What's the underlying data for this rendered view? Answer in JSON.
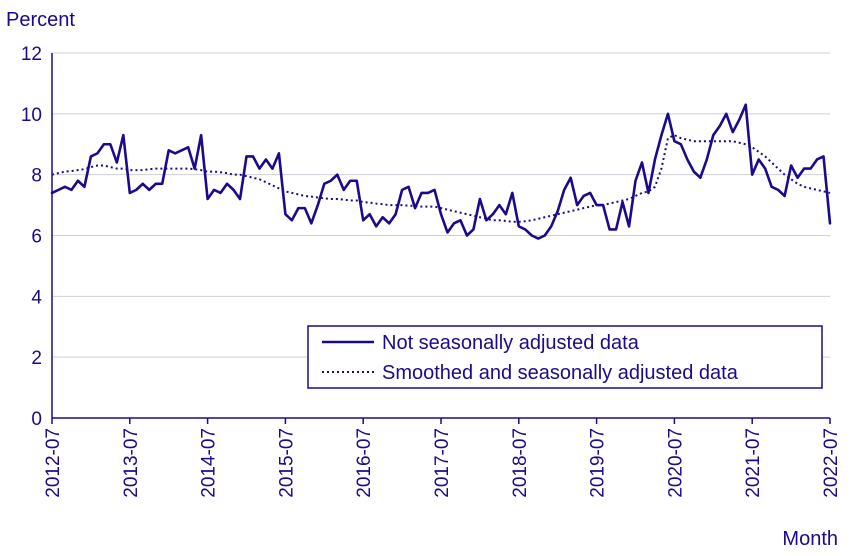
{
  "chart_data": {
    "type": "line",
    "title": "",
    "ylabel": "Percent",
    "xlabel": "Month",
    "ylim": [
      0,
      12
    ],
    "yticks": [
      0,
      2,
      4,
      6,
      8,
      10,
      12
    ],
    "xticks": [
      "2012-07",
      "2013-07",
      "2014-07",
      "2015-07",
      "2016-07",
      "2017-07",
      "2018-07",
      "2019-07",
      "2020-07",
      "2021-07",
      "2022-07"
    ],
    "x_start": "2012-07",
    "x_end": "2022-07",
    "grid": "horizontal",
    "legend_position": "bottom-right",
    "colors": {
      "series": "#1a0a8c",
      "text": "#1a0a8c",
      "grid": "#cfcfd8",
      "axis": "#1a0a8c"
    },
    "series": [
      {
        "name": "Not seasonally adjusted data",
        "style": "solid",
        "values": [
          7.4,
          7.5,
          7.6,
          7.5,
          7.8,
          7.6,
          8.6,
          8.7,
          9.0,
          9.0,
          8.4,
          9.3,
          7.4,
          7.5,
          7.7,
          7.5,
          7.7,
          7.7,
          8.8,
          8.7,
          8.8,
          8.9,
          8.2,
          9.3,
          7.2,
          7.5,
          7.4,
          7.7,
          7.5,
          7.2,
          8.6,
          8.6,
          8.2,
          8.5,
          8.2,
          8.7,
          6.7,
          6.5,
          6.9,
          6.9,
          6.4,
          7.0,
          7.7,
          7.8,
          8.0,
          7.5,
          7.8,
          7.8,
          6.5,
          6.7,
          6.3,
          6.6,
          6.4,
          6.7,
          7.5,
          7.6,
          6.9,
          7.4,
          7.4,
          7.5,
          6.7,
          6.1,
          6.4,
          6.5,
          6.0,
          6.2,
          7.2,
          6.5,
          6.7,
          7.0,
          6.7,
          7.4,
          6.3,
          6.2,
          6.0,
          5.9,
          6.0,
          6.3,
          6.8,
          7.5,
          7.9,
          7.0,
          7.3,
          7.4,
          7.0,
          7.0,
          6.2,
          6.2,
          7.1,
          6.3,
          7.8,
          8.4,
          7.4,
          8.5,
          9.3,
          10.0,
          9.1,
          9.0,
          8.5,
          8.1,
          7.9,
          8.5,
          9.3,
          9.6,
          10.0,
          9.4,
          9.8,
          10.3,
          8.0,
          8.5,
          8.2,
          7.6,
          7.5,
          7.3,
          8.3,
          7.9,
          8.2,
          8.2,
          8.5,
          8.6,
          6.4
        ]
      },
      {
        "name": "Smoothed and seasonally adjusted data",
        "style": "dotted",
        "values": [
          8.0,
          8.05,
          8.1,
          8.12,
          8.15,
          8.18,
          8.25,
          8.3,
          8.3,
          8.25,
          8.2,
          8.2,
          8.15,
          8.15,
          8.15,
          8.18,
          8.2,
          8.2,
          8.2,
          8.2,
          8.2,
          8.2,
          8.18,
          8.15,
          8.1,
          8.1,
          8.08,
          8.05,
          8.0,
          8.0,
          7.95,
          7.9,
          7.85,
          7.75,
          7.65,
          7.55,
          7.45,
          7.4,
          7.35,
          7.3,
          7.28,
          7.25,
          7.22,
          7.2,
          7.2,
          7.18,
          7.15,
          7.15,
          7.1,
          7.08,
          7.05,
          7.03,
          7.0,
          7.0,
          7.0,
          6.98,
          6.97,
          6.95,
          6.95,
          6.95,
          6.9,
          6.85,
          6.8,
          6.75,
          6.7,
          6.65,
          6.6,
          6.55,
          6.5,
          6.5,
          6.48,
          6.45,
          6.45,
          6.47,
          6.5,
          6.55,
          6.6,
          6.65,
          6.7,
          6.75,
          6.8,
          6.85,
          6.9,
          6.95,
          7.0,
          7.0,
          7.05,
          7.1,
          7.15,
          7.2,
          7.3,
          7.4,
          7.45,
          7.6,
          8.2,
          9.2,
          9.3,
          9.2,
          9.15,
          9.1,
          9.1,
          9.1,
          9.1,
          9.1,
          9.1,
          9.1,
          9.05,
          9.0,
          8.9,
          8.75,
          8.6,
          8.4,
          8.2,
          8.0,
          7.85,
          7.7,
          7.6,
          7.55,
          7.5,
          7.45,
          7.4
        ]
      }
    ]
  }
}
